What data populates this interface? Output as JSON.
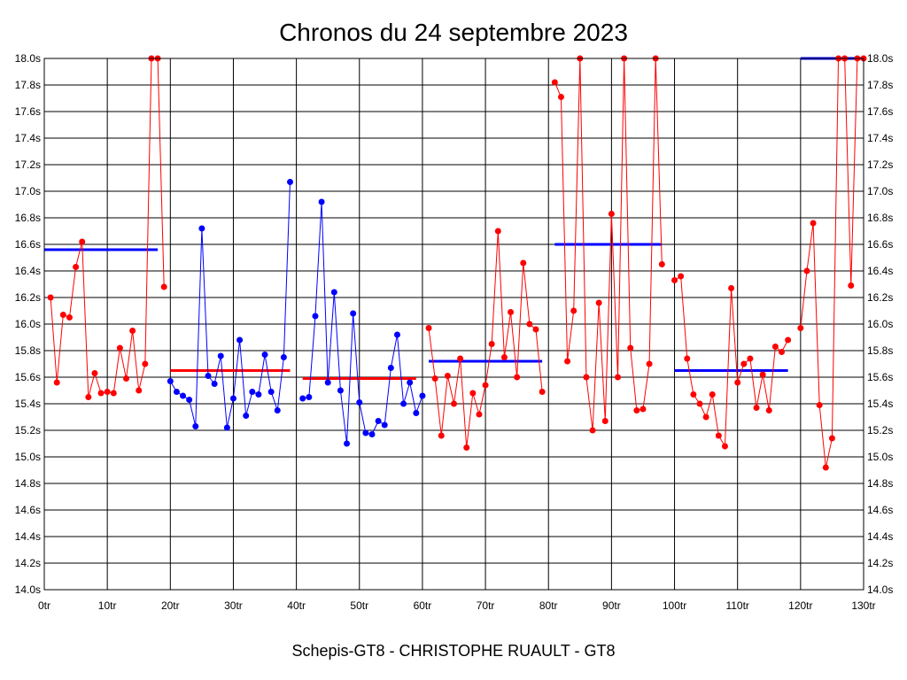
{
  "chart_data": {
    "type": "line",
    "title": "Chronos du 24 septembre 2023",
    "footer": "Schepis-GT8 - CHRISTOPHE RUAULT - GT8",
    "ylim": [
      14.0,
      18.0
    ],
    "xlim": [
      0,
      130
    ],
    "y_ticks": [
      "14.0s",
      "14.2s",
      "14.4s",
      "14.6s",
      "14.8s",
      "15.0s",
      "15.2s",
      "15.4s",
      "15.6s",
      "15.8s",
      "16.0s",
      "16.2s",
      "16.4s",
      "16.6s",
      "16.8s",
      "17.0s",
      "17.2s",
      "17.4s",
      "17.6s",
      "17.8s",
      "18.0s"
    ],
    "x_ticks": [
      "0tr",
      "10tr",
      "20tr",
      "30tr",
      "40tr",
      "50tr",
      "60tr",
      "70tr",
      "80tr",
      "90tr",
      "100tr",
      "110tr",
      "120tr",
      "130tr"
    ],
    "grid": true,
    "colors": {
      "red": "#ff0000",
      "blue": "#0000ff"
    },
    "series": [
      {
        "color": "red",
        "x": [
          1,
          2,
          3,
          4,
          5,
          6,
          7,
          8,
          9,
          10,
          11,
          12,
          13,
          14,
          15,
          16,
          17,
          18,
          19
        ],
        "values": [
          16.2,
          15.56,
          16.07,
          16.05,
          16.43,
          16.62,
          15.45,
          15.63,
          15.48,
          15.49,
          15.48,
          15.82,
          15.59,
          15.95,
          15.5,
          15.7,
          18.0,
          18.0,
          16.28
        ]
      },
      {
        "color": "blue",
        "x": [
          20,
          21,
          22,
          23,
          24,
          25,
          26,
          27,
          28,
          29,
          30,
          31,
          32,
          33,
          34,
          35,
          36,
          37,
          38,
          39
        ],
        "values": [
          15.57,
          15.49,
          15.46,
          15.43,
          15.23,
          16.72,
          15.61,
          15.55,
          15.76,
          15.22,
          15.44,
          15.88,
          15.31,
          15.49,
          15.47,
          15.77,
          15.49,
          15.35,
          15.75,
          17.07
        ]
      },
      {
        "color": "blue",
        "x": [
          41,
          42,
          43,
          44,
          45,
          46,
          47,
          48,
          49,
          50,
          51,
          52,
          53,
          54,
          55,
          56,
          57,
          58,
          59,
          60
        ],
        "values": [
          15.44,
          15.45,
          16.06,
          16.92,
          15.56,
          16.24,
          15.5,
          15.1,
          16.08,
          15.41,
          15.18,
          15.17,
          15.27,
          15.24,
          15.67,
          15.92,
          15.4,
          15.56,
          15.33,
          15.46
        ]
      },
      {
        "color": "red",
        "x": [
          61,
          62,
          63,
          64,
          65,
          66,
          67,
          68,
          69,
          70,
          71,
          72,
          73,
          74,
          75,
          76,
          77,
          78,
          79
        ],
        "values": [
          15.97,
          15.59,
          15.16,
          15.61,
          15.4,
          15.74,
          15.07,
          15.48,
          15.32,
          15.54,
          15.85,
          16.7,
          15.75,
          16.09,
          15.6,
          16.46,
          16.0,
          15.96,
          15.49
        ]
      },
      {
        "color": "red",
        "x": [
          81,
          82,
          83,
          84,
          85,
          86,
          87,
          88,
          89,
          90,
          91,
          92,
          93,
          94,
          95,
          96,
          97,
          98
        ],
        "values": [
          17.82,
          17.71,
          15.72,
          16.1,
          18.0,
          15.6,
          15.2,
          16.16,
          15.27,
          16.83,
          15.6,
          18.0,
          15.82,
          15.35,
          15.36,
          15.7,
          18.0,
          16.45
        ]
      },
      {
        "color": "red",
        "x": [
          100,
          101,
          102,
          103,
          104,
          105,
          106,
          107,
          108,
          109,
          110,
          111,
          112,
          113,
          114,
          115,
          116,
          117,
          118
        ],
        "values": [
          16.33,
          16.36,
          15.74,
          15.47,
          15.4,
          15.3,
          15.47,
          15.16,
          15.08,
          16.27,
          15.56,
          15.7,
          15.74,
          15.37,
          15.62,
          15.35,
          15.83,
          15.79,
          15.88
        ]
      },
      {
        "color": "red",
        "x": [
          120,
          121,
          122,
          123,
          124,
          125,
          126,
          127,
          128,
          129,
          130
        ],
        "values": [
          15.97,
          16.4,
          16.76,
          15.39,
          14.92,
          15.14,
          18.0,
          18.0,
          16.29,
          18.0,
          18.0
        ]
      }
    ],
    "averages": [
      {
        "color": "blue",
        "x_start": 0,
        "x_end": 18,
        "value": 16.56
      },
      {
        "color": "red",
        "x_start": 20,
        "x_end": 39,
        "value": 15.65
      },
      {
        "color": "red",
        "x_start": 41,
        "x_end": 59,
        "value": 15.59
      },
      {
        "color": "blue",
        "x_start": 61,
        "x_end": 79,
        "value": 15.72
      },
      {
        "color": "blue",
        "x_start": 81,
        "x_end": 98,
        "value": 16.6
      },
      {
        "color": "blue",
        "x_start": 100,
        "x_end": 118,
        "value": 15.65
      },
      {
        "color": "blue",
        "x_start": 120,
        "x_end": 130,
        "value": 18.0
      }
    ]
  }
}
